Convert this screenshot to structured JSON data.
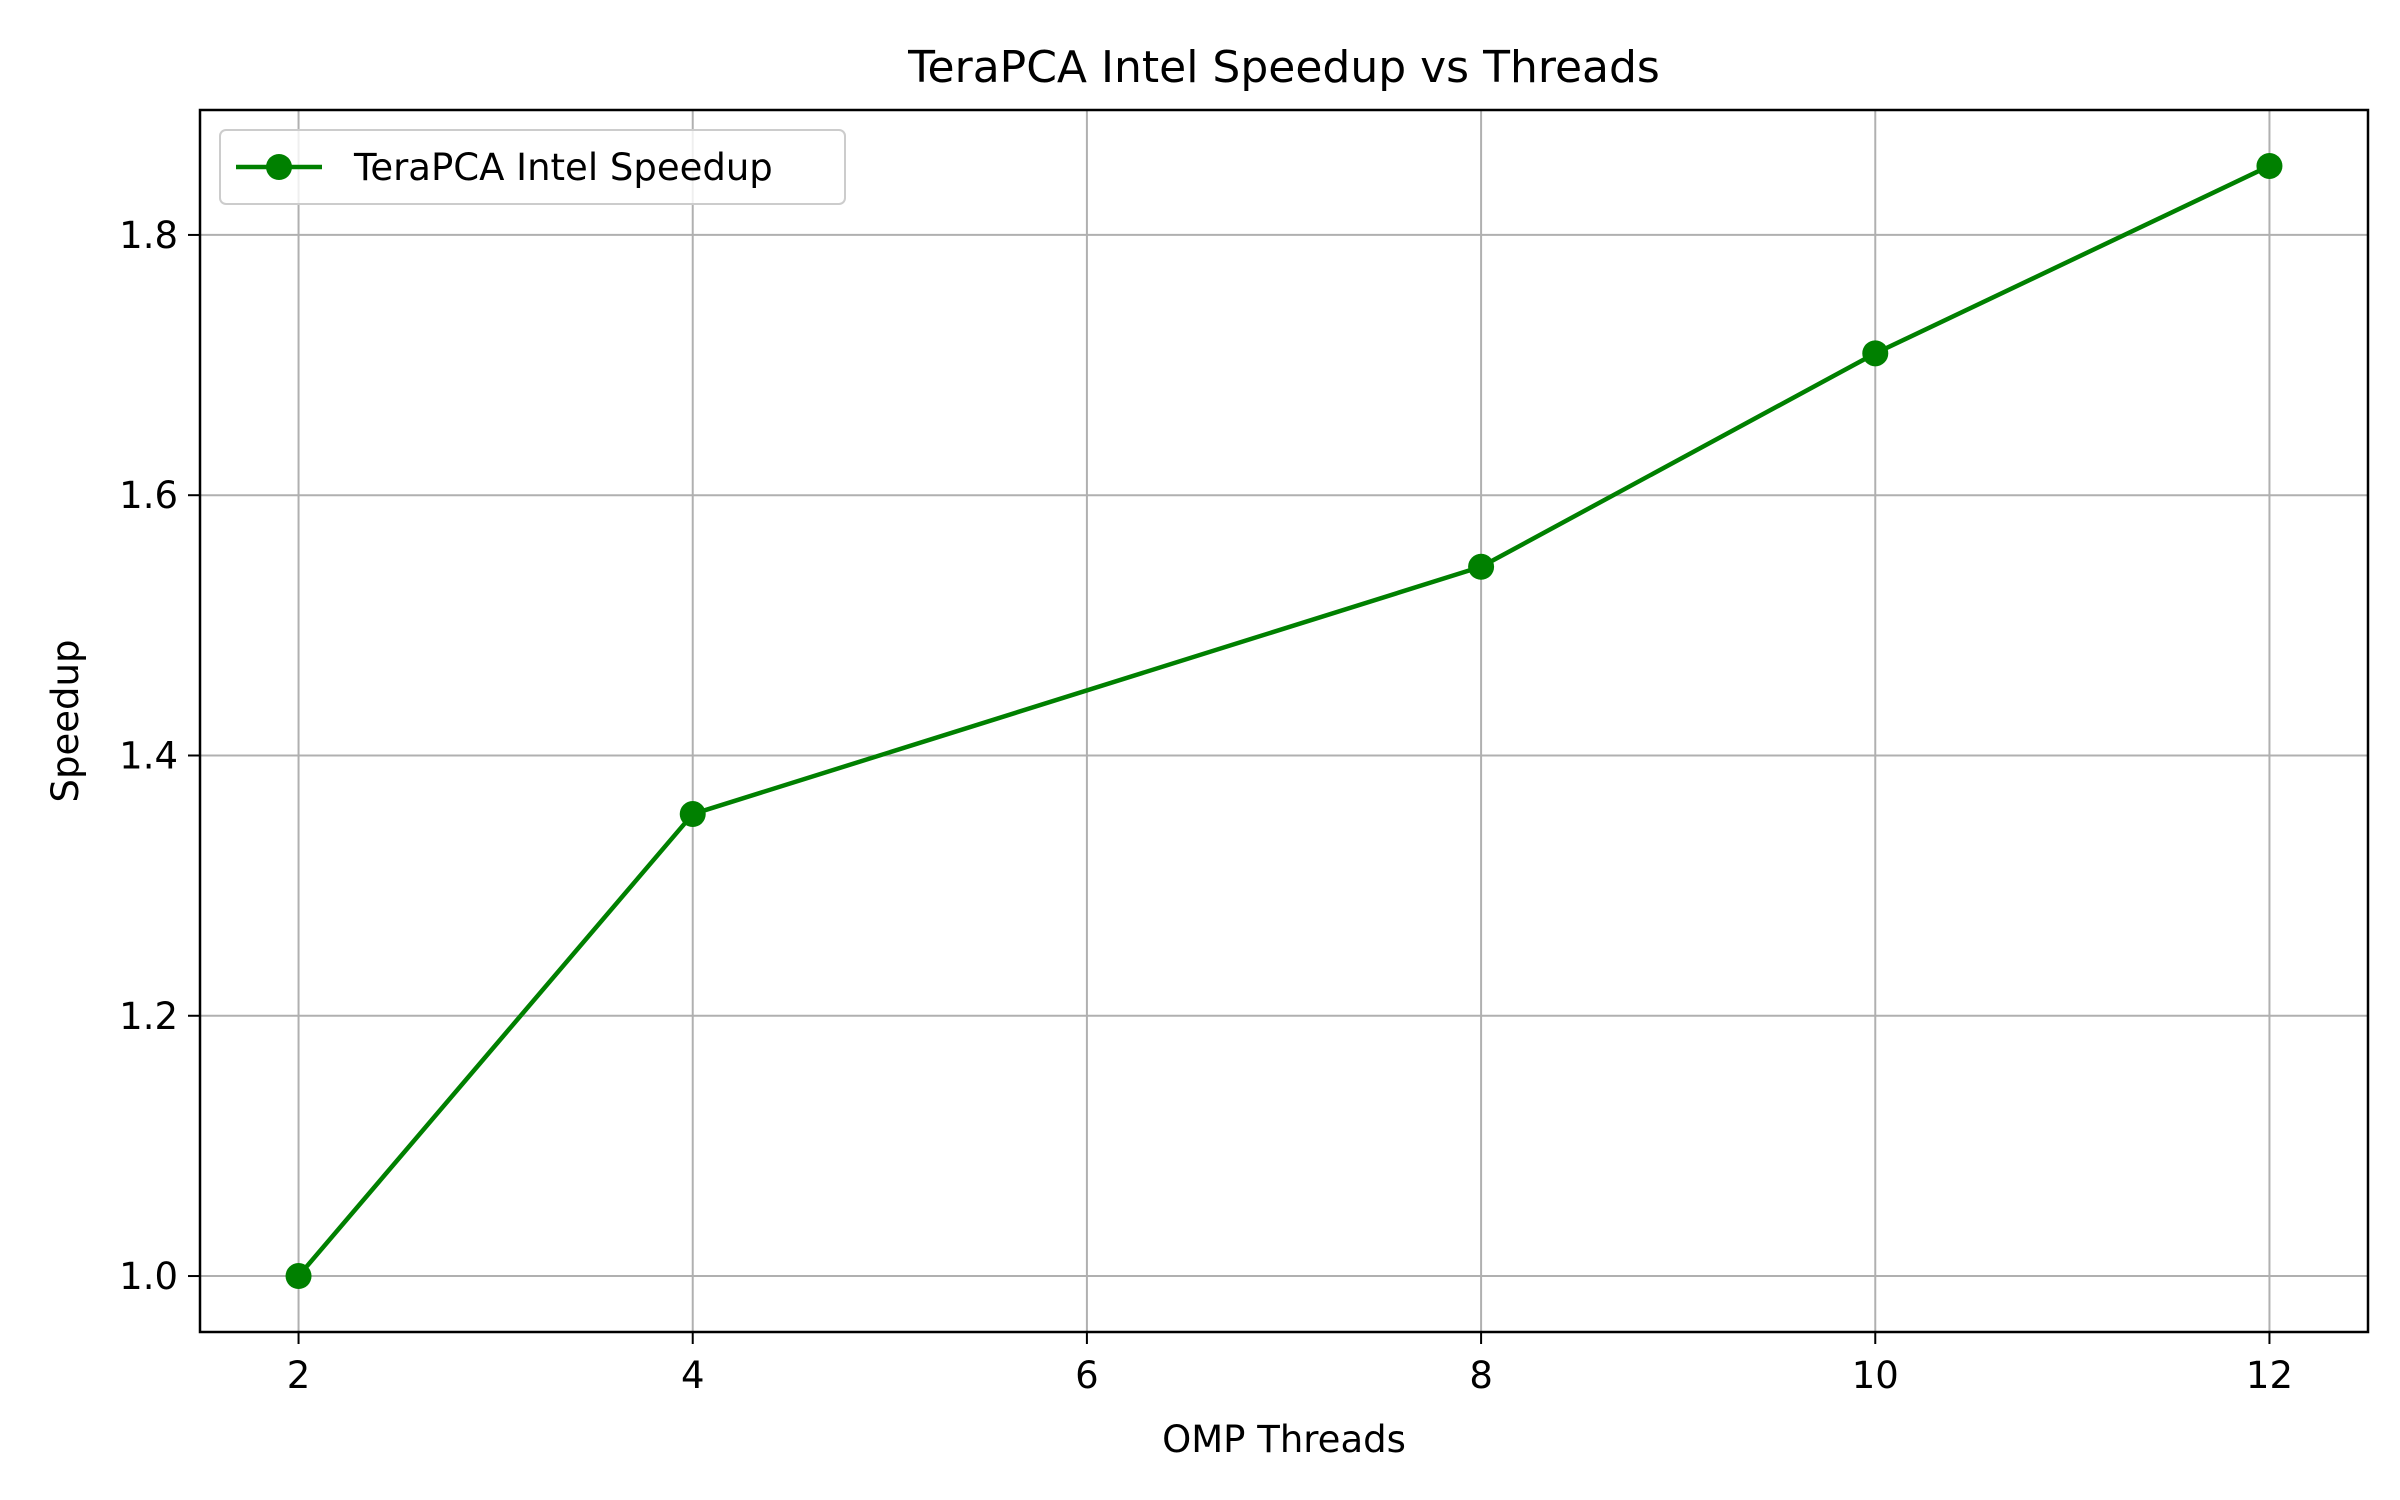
{
  "chart_data": {
    "type": "line",
    "title": "TeraPCA Intel Speedup vs Threads",
    "xlabel": "OMP Threads",
    "ylabel": "Speedup",
    "xlim": [
      1.5,
      12.5
    ],
    "ylim": [
      0.957,
      1.896
    ],
    "xticks": [
      2,
      4,
      6,
      8,
      10,
      12
    ],
    "xtick_labels": [
      "2",
      "4",
      "6",
      "8",
      "10",
      "12"
    ],
    "yticks": [
      1.0,
      1.2,
      1.4,
      1.6,
      1.8
    ],
    "ytick_labels": [
      "1.0",
      "1.2",
      "1.4",
      "1.6",
      "1.8"
    ],
    "grid": true,
    "legend_position": "top-left",
    "series": [
      {
        "name": "TeraPCA Intel Speedup",
        "color": "#008000",
        "marker": "circle",
        "x": [
          2,
          4,
          8,
          10,
          12
        ],
        "y": [
          1.0,
          1.355,
          1.545,
          1.709,
          1.853
        ]
      }
    ]
  }
}
